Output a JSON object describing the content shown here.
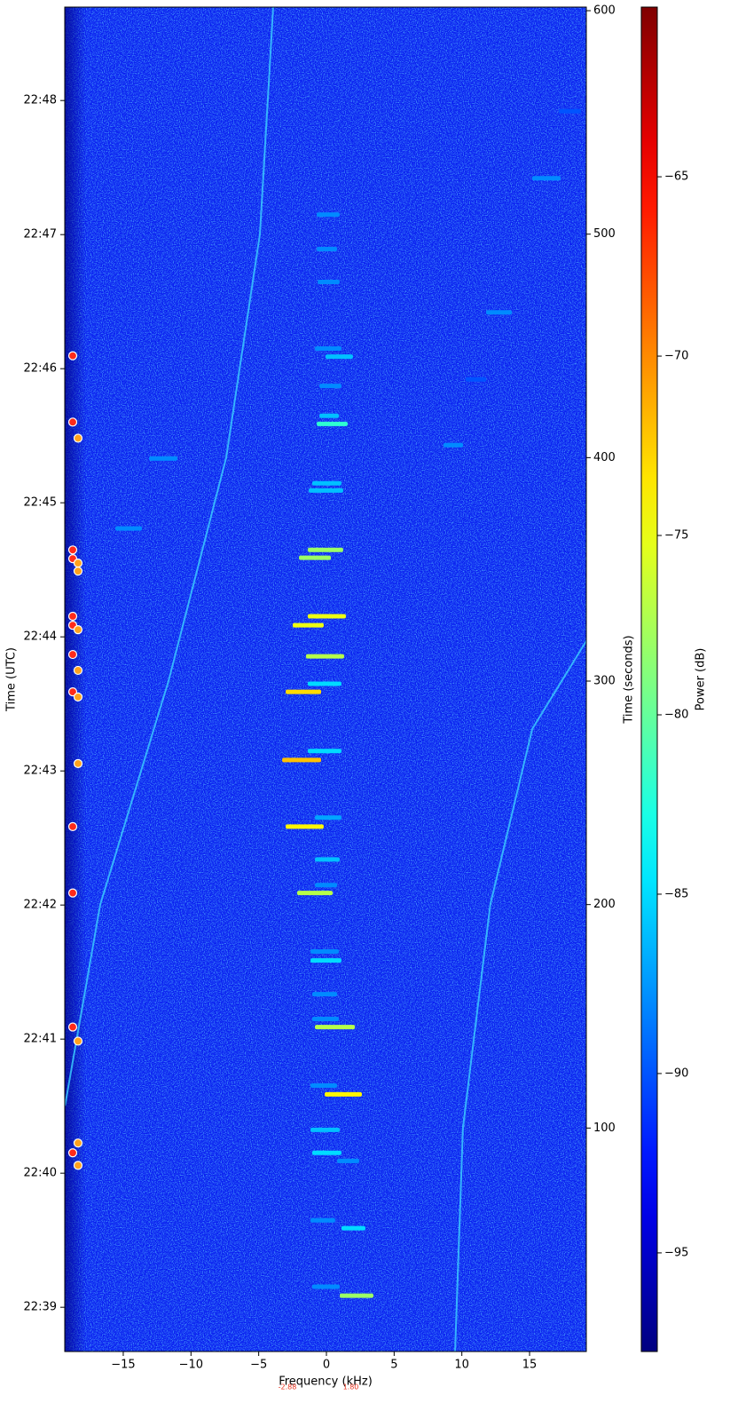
{
  "chart_data": {
    "type": "spectrogram",
    "xlabel": "Frequency (kHz)",
    "ylabel": "Time (UTC)",
    "y2label": "Time (seconds)",
    "colorbar_label": "Power (dB)",
    "colormap": "jet",
    "xlim": [
      -19.32,
      19.19
    ],
    "xticks": [
      {
        "value": -15,
        "label": "−15"
      },
      {
        "value": -10,
        "label": "−10"
      },
      {
        "value": -5,
        "label": "−5"
      },
      0,
      5,
      10,
      15
    ],
    "ylim": [
      0,
      601.6
    ],
    "yticks": [
      {
        "value": 19.8,
        "label": "22:39"
      },
      {
        "value": 79.8,
        "label": "22:40"
      },
      {
        "value": 139.8,
        "label": "22:41"
      },
      {
        "value": 199.8,
        "label": "22:42"
      },
      {
        "value": 259.8,
        "label": "22:43"
      },
      {
        "value": 319.8,
        "label": "22:44"
      },
      {
        "value": 379.8,
        "label": "22:45"
      },
      {
        "value": 439.8,
        "label": "22:46"
      },
      {
        "value": 499.8,
        "label": "22:47"
      },
      {
        "value": 559.8,
        "label": "22:48"
      }
    ],
    "y2lim": [
      0,
      601.6
    ],
    "y2ticks": [
      100,
      200,
      300,
      400,
      500,
      600
    ],
    "clim": [
      -97.75,
      -60.27
    ],
    "cticks": [
      {
        "value": -65,
        "label": "−65"
      },
      {
        "value": -70,
        "label": "−70"
      },
      {
        "value": -75,
        "label": "−75"
      },
      {
        "value": -80,
        "label": "−80"
      },
      {
        "value": -85,
        "label": "−85"
      },
      {
        "value": -90,
        "label": "−90"
      },
      {
        "value": -95,
        "label": "−95"
      }
    ],
    "bursts": {
      "f_start": [
        0.98,
        -1.05,
        1.11,
        -1.18,
        0.79,
        -1.05,
        -1.18,
        -0.13,
        -1.18,
        -0.85,
        -1.05,
        -1.05,
        -1.18,
        -1.18,
        -2.16,
        -0.85,
        -0.85,
        -3.01,
        -0.85,
        -3.27,
        -1.38,
        -3.01,
        -1.38,
        -1.51,
        -2.49,
        -1.38,
        -2.03,
        -1.38,
        -1.31,
        -1.05,
        -0.72,
        -0.52,
        -0.52,
        -0.07,
        -0.85,
        -0.65,
        -0.72,
        -0.72,
        -13.1,
        -15.59,
        8.64,
        10.28,
        11.79,
        15.19,
        17.16
      ],
      "f_end": [
        3.47,
        0.98,
        2.88,
        0.65,
        2.42,
        1.11,
        0.98,
        2.62,
        0.79,
        2.1,
        0.92,
        0.79,
        1.11,
        0.92,
        0.46,
        0.79,
        0.98,
        -0.2,
        1.11,
        -0.39,
        1.11,
        -0.39,
        1.11,
        1.31,
        -0.2,
        1.44,
        0.33,
        1.24,
        1.24,
        1.11,
        1.57,
        0.92,
        1.11,
        1.96,
        1.11,
        0.98,
        0.79,
        0.98,
        -11.0,
        -13.62,
        10.09,
        11.79,
        13.69,
        17.29,
        18.79
      ],
      "t": [
        25.0,
        29.0,
        55.2,
        58.7,
        85.3,
        88.9,
        99.2,
        115.1,
        119.0,
        145.2,
        148.8,
        159.9,
        175.0,
        179.0,
        205.2,
        208.7,
        220.2,
        234.9,
        238.9,
        264.7,
        268.7,
        295.2,
        298.8,
        311.1,
        325.0,
        329.0,
        355.2,
        358.7,
        385.3,
        388.5,
        415.1,
        418.7,
        432.1,
        445.2,
        448.8,
        478.6,
        493.3,
        508.7,
        399.6,
        368.3,
        405.6,
        435.0,
        465.0,
        525.0,
        555.0
      ],
      "power": [
        -78,
        -88,
        -85,
        -88,
        -88,
        -85,
        -86,
        -74,
        -88,
        -77,
        -88,
        -88,
        -85,
        -88,
        -77,
        -88,
        -86,
        -74,
        -87,
        -72,
        -85,
        -73,
        -85,
        -77,
        -75,
        -75,
        -78,
        -78,
        -86,
        -86,
        -82,
        -86,
        -88,
        -86,
        -88,
        -88,
        -88,
        -88,
        -88,
        -88,
        -88,
        -90,
        -88,
        -88,
        -90
      ]
    },
    "tracks": [
      {
        "color": "#39c8ff",
        "t": [
          601.6,
          500,
          400,
          300,
          200,
          110
        ],
        "f": [
          -3.93,
          -4.91,
          -7.4,
          -11.66,
          -16.7,
          -19.3
        ]
      },
      {
        "color": "#39c8ff",
        "t": [
          0,
          100,
          200,
          278.6,
          318
        ],
        "f": [
          9.5,
          10.08,
          12.1,
          15.2,
          19.19
        ]
      }
    ],
    "markers": [
      {
        "color": "#ff2a1a",
        "f": [
          -18.73,
          -18.73,
          -18.73,
          -18.73,
          -18.73,
          -18.73,
          -18.73,
          -18.73,
          -18.73,
          -18.73,
          -18.73,
          -18.73
        ],
        "t": [
          445.6,
          415.9,
          358.7,
          354.8,
          329.0,
          325.0,
          311.9,
          295.2,
          234.9,
          205.2,
          145.2,
          88.9
        ]
      },
      {
        "color": "#ffa21e",
        "f": [
          -18.34,
          -18.34,
          -18.34,
          -18.34,
          -18.34,
          -18.34,
          -18.34,
          -18.34,
          -18.34,
          -18.34
        ],
        "t": [
          408.7,
          352.8,
          349.2,
          323.0,
          304.8,
          292.9,
          263.1,
          138.9,
          93.3,
          83.3
        ]
      }
    ],
    "freq_markers": {
      "values": [
        -2.88,
        1.8
      ],
      "value_labels": [
        "-2.88",
        "1.80"
      ],
      "color": "#e8321e"
    }
  }
}
